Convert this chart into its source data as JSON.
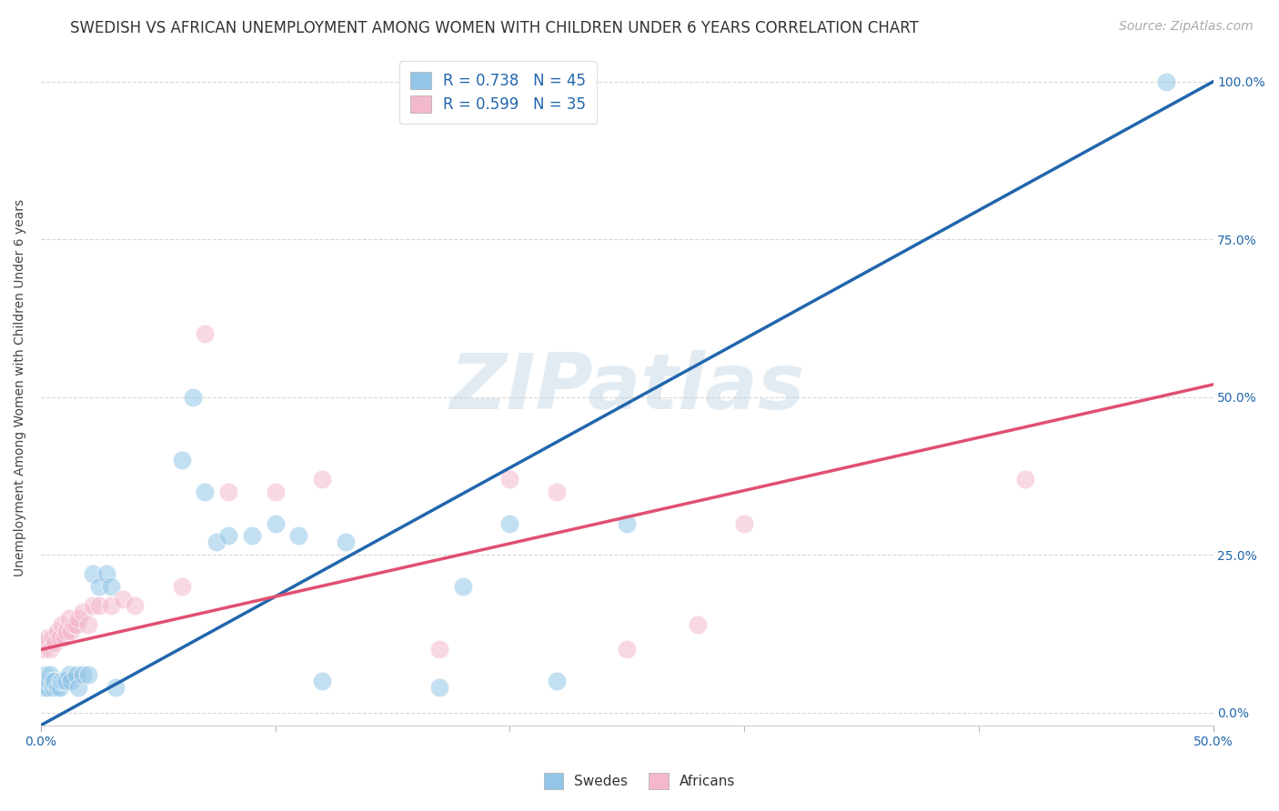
{
  "title": "SWEDISH VS AFRICAN UNEMPLOYMENT AMONG WOMEN WITH CHILDREN UNDER 6 YEARS CORRELATION CHART",
  "source": "Source: ZipAtlas.com",
  "ylabel": "Unemployment Among Women with Children Under 6 years",
  "xlim": [
    0.0,
    0.5
  ],
  "ylim": [
    -0.02,
    1.05
  ],
  "swedes_color": "#93c6e8",
  "africans_color": "#f4b8cc",
  "swedes_line_color": "#2166ac",
  "africans_line_color": "#e05070",
  "legend_R_swedes": "R = 0.738",
  "legend_N_swedes": "N = 45",
  "legend_R_africans": "R = 0.599",
  "legend_N_africans": "N = 35",
  "watermark": "ZIPatlas",
  "swedes_line": [
    [
      0.0,
      -0.02
    ],
    [
      0.5,
      1.0
    ]
  ],
  "africans_line": [
    [
      0.0,
      0.1
    ],
    [
      0.5,
      0.52
    ]
  ],
  "swedes_x": [
    0.001,
    0.001,
    0.002,
    0.002,
    0.002,
    0.003,
    0.003,
    0.004,
    0.004,
    0.005,
    0.005,
    0.006,
    0.007,
    0.008,
    0.008,
    0.009,
    0.01,
    0.011,
    0.012,
    0.013,
    0.015,
    0.016,
    0.018,
    0.02,
    0.022,
    0.025,
    0.028,
    0.03,
    0.032,
    0.06,
    0.065,
    0.07,
    0.075,
    0.08,
    0.09,
    0.1,
    0.11,
    0.12,
    0.13,
    0.17,
    0.18,
    0.2,
    0.22,
    0.25,
    0.48
  ],
  "swedes_y": [
    0.04,
    0.05,
    0.04,
    0.05,
    0.06,
    0.04,
    0.05,
    0.05,
    0.06,
    0.04,
    0.05,
    0.05,
    0.04,
    0.05,
    0.04,
    0.05,
    0.05,
    0.05,
    0.06,
    0.05,
    0.06,
    0.04,
    0.06,
    0.06,
    0.22,
    0.2,
    0.22,
    0.2,
    0.04,
    0.4,
    0.5,
    0.35,
    0.27,
    0.28,
    0.28,
    0.3,
    0.28,
    0.05,
    0.27,
    0.04,
    0.2,
    0.3,
    0.05,
    0.3,
    1.0
  ],
  "africans_x": [
    0.001,
    0.002,
    0.003,
    0.004,
    0.005,
    0.006,
    0.007,
    0.008,
    0.009,
    0.01,
    0.011,
    0.012,
    0.013,
    0.014,
    0.015,
    0.016,
    0.018,
    0.02,
    0.022,
    0.025,
    0.03,
    0.035,
    0.04,
    0.06,
    0.07,
    0.08,
    0.1,
    0.12,
    0.17,
    0.2,
    0.22,
    0.25,
    0.28,
    0.3,
    0.42
  ],
  "africans_y": [
    0.1,
    0.11,
    0.12,
    0.1,
    0.12,
    0.11,
    0.13,
    0.12,
    0.14,
    0.12,
    0.13,
    0.15,
    0.13,
    0.14,
    0.14,
    0.15,
    0.16,
    0.14,
    0.17,
    0.17,
    0.17,
    0.18,
    0.17,
    0.2,
    0.6,
    0.35,
    0.35,
    0.37,
    0.1,
    0.37,
    0.35,
    0.1,
    0.14,
    0.3,
    0.37
  ],
  "title_fontsize": 12,
  "axis_label_fontsize": 10,
  "tick_fontsize": 10,
  "legend_fontsize": 12,
  "source_fontsize": 10,
  "background_color": "#ffffff",
  "grid_color": "#cccccc"
}
